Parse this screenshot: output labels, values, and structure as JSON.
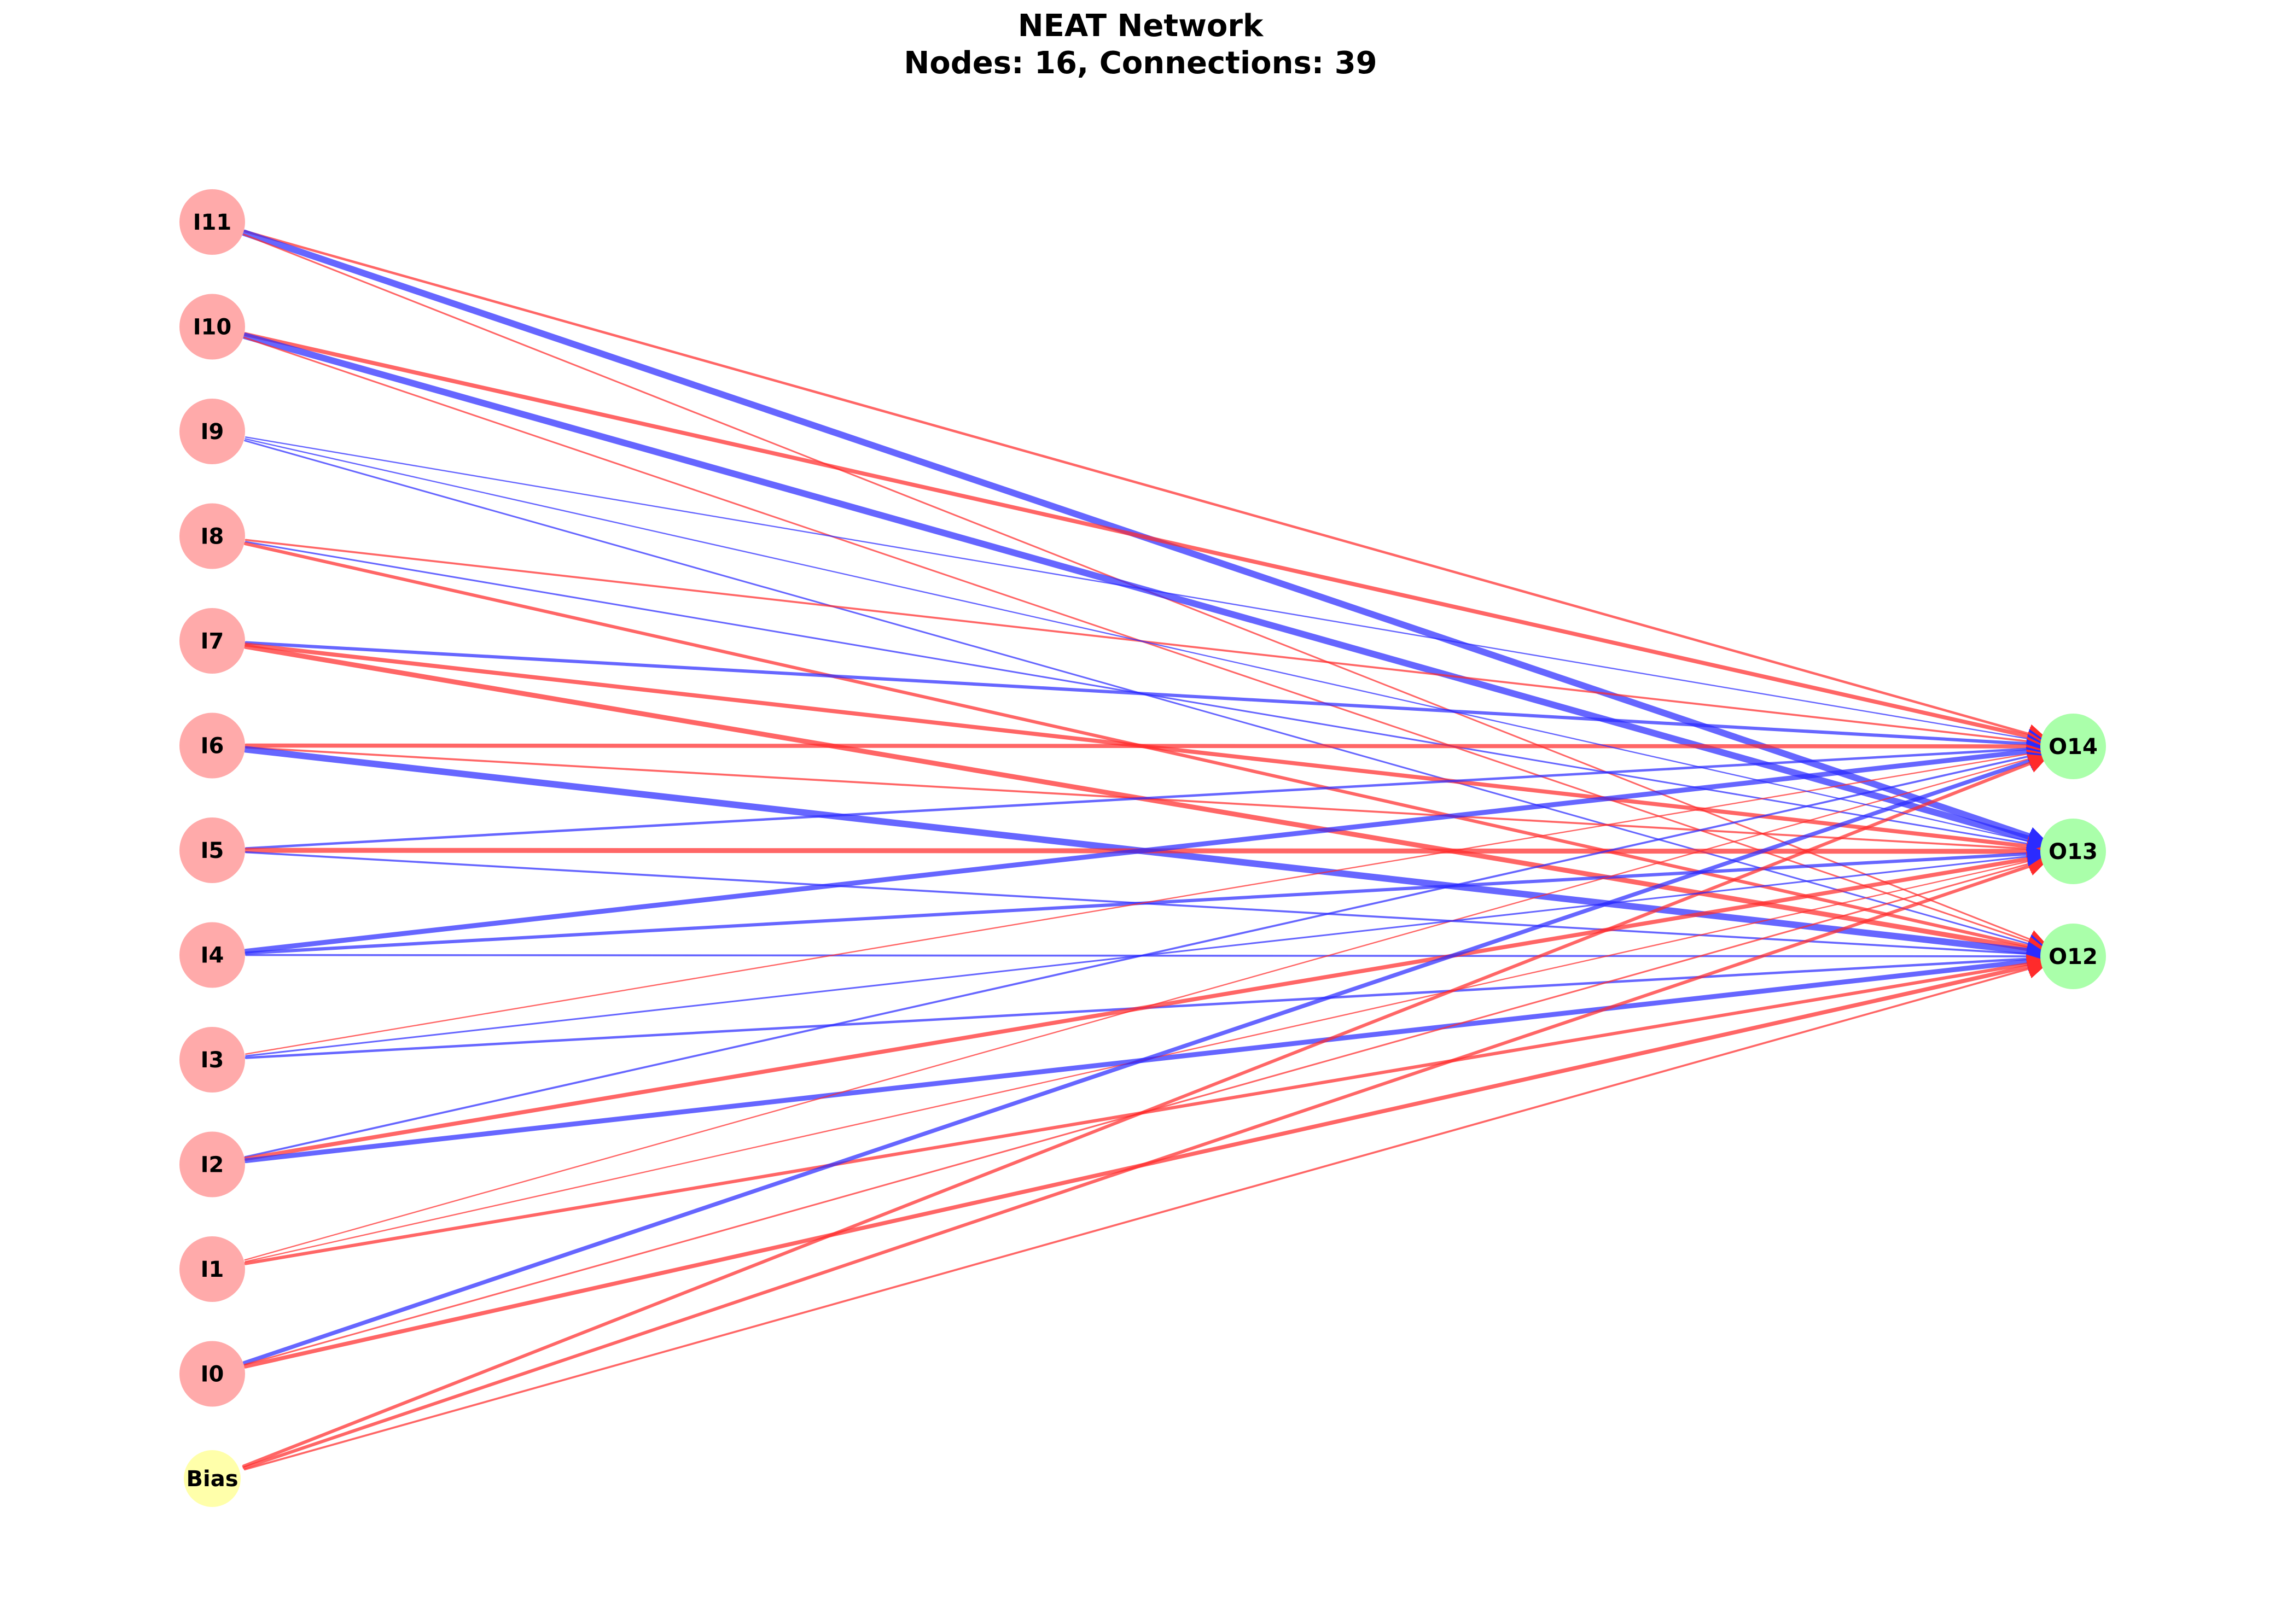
{
  "title": "NEAT Network",
  "subtitle": "Nodes: 16, Connections: 39",
  "colors": {
    "input_node": "#ffaaaa",
    "bias_node": "#ffffaa",
    "output_node": "#aaffaa",
    "positive_edge": "#ff2b2b",
    "negative_edge": "#2b2bff"
  },
  "nodes": [
    {
      "id": "I11",
      "label": "I11",
      "type": "input"
    },
    {
      "id": "I10",
      "label": "I10",
      "type": "input"
    },
    {
      "id": "I9",
      "label": "I9",
      "type": "input"
    },
    {
      "id": "I8",
      "label": "I8",
      "type": "input"
    },
    {
      "id": "I7",
      "label": "I7",
      "type": "input"
    },
    {
      "id": "I6",
      "label": "I6",
      "type": "input"
    },
    {
      "id": "I5",
      "label": "I5",
      "type": "input"
    },
    {
      "id": "I4",
      "label": "I4",
      "type": "input"
    },
    {
      "id": "I3",
      "label": "I3",
      "type": "input"
    },
    {
      "id": "I2",
      "label": "I2",
      "type": "input"
    },
    {
      "id": "I1",
      "label": "I1",
      "type": "input"
    },
    {
      "id": "I0",
      "label": "I0",
      "type": "input"
    },
    {
      "id": "Bias",
      "label": "Bias",
      "type": "bias"
    },
    {
      "id": "O14",
      "label": "O14",
      "type": "output"
    },
    {
      "id": "O13",
      "label": "O13",
      "type": "output"
    },
    {
      "id": "O12",
      "label": "O12",
      "type": "output"
    }
  ],
  "connections": [
    {
      "from": "I11",
      "to": "O14",
      "sign": "positive",
      "weight": 1.5
    },
    {
      "from": "I11",
      "to": "O13",
      "sign": "negative",
      "weight": 4.0
    },
    {
      "from": "I11",
      "to": "O12",
      "sign": "positive",
      "weight": 1.0
    },
    {
      "from": "I10",
      "to": "O14",
      "sign": "positive",
      "weight": 2.5
    },
    {
      "from": "I10",
      "to": "O13",
      "sign": "negative",
      "weight": 4.0
    },
    {
      "from": "I10",
      "to": "O12",
      "sign": "positive",
      "weight": 1.0
    },
    {
      "from": "I9",
      "to": "O14",
      "sign": "negative",
      "weight": 0.8
    },
    {
      "from": "I9",
      "to": "O12",
      "sign": "negative",
      "weight": 1.0
    },
    {
      "from": "I8",
      "to": "O14",
      "sign": "positive",
      "weight": 1.2
    },
    {
      "from": "I8",
      "to": "O13",
      "sign": "negative",
      "weight": 1.0
    },
    {
      "from": "I8",
      "to": "O12",
      "sign": "positive",
      "weight": 2.0
    },
    {
      "from": "I7",
      "to": "O14",
      "sign": "negative",
      "weight": 2.0
    },
    {
      "from": "I7",
      "to": "O13",
      "sign": "positive",
      "weight": 2.5
    },
    {
      "from": "I7",
      "to": "O12",
      "sign": "positive",
      "weight": 3.0
    },
    {
      "from": "I6",
      "to": "O14",
      "sign": "positive",
      "weight": 2.5
    },
    {
      "from": "I6",
      "to": "O13",
      "sign": "positive",
      "weight": 1.2
    },
    {
      "from": "I6",
      "to": "O12",
      "sign": "negative",
      "weight": 4.0
    },
    {
      "from": "I5",
      "to": "O14",
      "sign": "negative",
      "weight": 1.5
    },
    {
      "from": "I5",
      "to": "O13",
      "sign": "positive",
      "weight": 3.0
    },
    {
      "from": "I5",
      "to": "O12",
      "sign": "negative",
      "weight": 1.2
    },
    {
      "from": "I4",
      "to": "O14",
      "sign": "negative",
      "weight": 3.0
    },
    {
      "from": "I4",
      "to": "O13",
      "sign": "negative",
      "weight": 2.0
    },
    {
      "from": "I4",
      "to": "O12",
      "sign": "negative",
      "weight": 1.2
    },
    {
      "from": "I3",
      "to": "O14",
      "sign": "positive",
      "weight": 0.8
    },
    {
      "from": "I3",
      "to": "O12",
      "sign": "negative",
      "weight": 1.5
    },
    {
      "from": "I2",
      "to": "O14",
      "sign": "negative",
      "weight": 1.2
    },
    {
      "from": "I2",
      "to": "O13",
      "sign": "positive",
      "weight": 2.5
    },
    {
      "from": "I2",
      "to": "O12",
      "sign": "negative",
      "weight": 3.0
    },
    {
      "from": "I1",
      "to": "O14",
      "sign": "positive",
      "weight": 0.8
    },
    {
      "from": "I1",
      "to": "O13",
      "sign": "positive",
      "weight": 0.8
    },
    {
      "from": "I1",
      "to": "O12",
      "sign": "positive",
      "weight": 2.0
    },
    {
      "from": "I0",
      "to": "O14",
      "sign": "negative",
      "weight": 2.5
    },
    {
      "from": "I0",
      "to": "O13",
      "sign": "positive",
      "weight": 1.0
    },
    {
      "from": "I0",
      "to": "O12",
      "sign": "positive",
      "weight": 2.5
    },
    {
      "from": "Bias",
      "to": "O14",
      "sign": "positive",
      "weight": 2.0
    },
    {
      "from": "Bias",
      "to": "O13",
      "sign": "positive",
      "weight": 2.0
    },
    {
      "from": "Bias",
      "to": "O12",
      "sign": "positive",
      "weight": 1.2
    },
    {
      "from": "I9",
      "to": "O13",
      "sign": "negative",
      "weight": 0.8
    },
    {
      "from": "I3",
      "to": "O13",
      "sign": "negative",
      "weight": 1.0
    }
  ]
}
